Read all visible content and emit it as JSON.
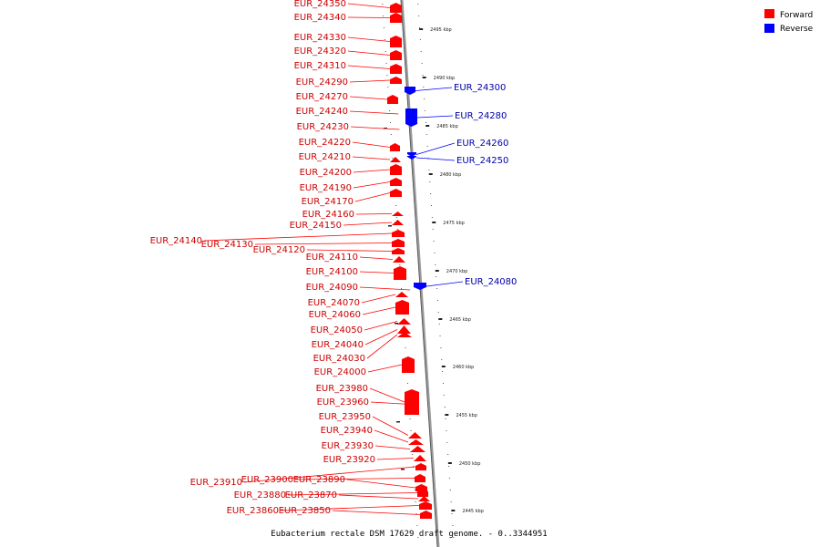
{
  "title": "Eubacterium rectale DSM 17629 draft genome. - 0..3344951",
  "legend": [
    {
      "label": "Forward",
      "color": "#ff0000"
    },
    {
      "label": "Reverse",
      "color": "#0000ff"
    }
  ],
  "ticks": [
    "2495 kbp",
    "2490 kbp",
    "2485 kbp",
    "2480 kbp",
    "2475 kbp",
    "2470 kbp",
    "2465 kbp",
    "2460 kbp",
    "2455 kbp",
    "2450 kbp",
    "2445 kbp"
  ],
  "forward_genes": [
    "EUR_24350",
    "EUR_24340",
    "EUR_24330",
    "EUR_24320",
    "EUR_24310",
    "EUR_24290",
    "EUR_24270",
    "EUR_24240",
    "EUR_24230",
    "EUR_24220",
    "EUR_24210",
    "EUR_24200",
    "EUR_24190",
    "EUR_24170",
    "EUR_24160",
    "EUR_24150",
    "EUR_24140",
    "EUR_24130",
    "EUR_24120",
    "EUR_24110",
    "EUR_24100",
    "EUR_24090",
    "EUR_24070",
    "EUR_24060",
    "EUR_24050",
    "EUR_24040",
    "EUR_24030",
    "EUR_24000",
    "EUR_23980",
    "EUR_23960",
    "EUR_23950",
    "EUR_23940",
    "EUR_23930",
    "EUR_23920",
    "EUR_23910",
    "EUR_23900",
    "EUR_23890",
    "EUR_23880",
    "EUR_23870",
    "EUR_23860",
    "EUR_23850"
  ],
  "reverse_genes": [
    "EUR_24300",
    "EUR_24280",
    "EUR_24260",
    "EUR_24250",
    "EUR_24080"
  ],
  "colors": {
    "forward": "#ff0000",
    "reverse": "#0000ff",
    "axis": "#888888"
  }
}
